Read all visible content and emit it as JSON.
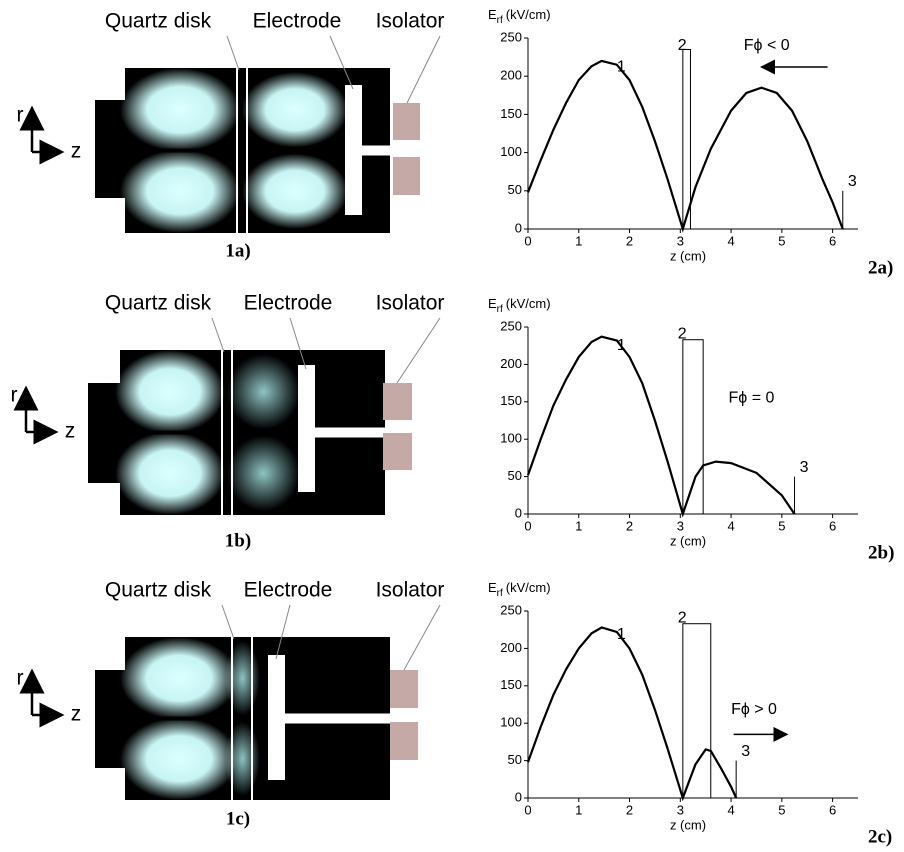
{
  "diagrams": [
    {
      "quartz": "Quartz disk",
      "electrode": "Electrode",
      "isolator": "Isolator",
      "r": "r",
      "z": "z",
      "label": "1a)"
    },
    {
      "quartz": "Quartz disk",
      "electrode": "Electrode",
      "isolator": "Isolator",
      "r": "r",
      "z": "z",
      "label": "1b)"
    },
    {
      "quartz": "Quartz disk",
      "electrode": "Electrode",
      "isolator": "Isolator",
      "r": "r",
      "z": "z",
      "label": "1c)"
    }
  ],
  "chart_data": [
    {
      "type": "line",
      "panel": "2a)",
      "ylabel": "E",
      "ylabel_sub": "rf",
      "ylabel_unit": "(kV/cm)",
      "xlabel": "z (cm)",
      "x": [
        0,
        0.25,
        0.5,
        0.75,
        1,
        1.25,
        1.45,
        1.75,
        2,
        2.25,
        2.5,
        2.75,
        3.05,
        3.3,
        3.6,
        4,
        4.3,
        4.6,
        4.9,
        5.2,
        5.5,
        5.8,
        6.0,
        6.2
      ],
      "values": [
        48,
        90,
        130,
        165,
        195,
        213,
        220,
        215,
        195,
        160,
        115,
        65,
        0,
        55,
        105,
        155,
        178,
        185,
        178,
        155,
        115,
        65,
        35,
        0
      ],
      "color": "#000000",
      "xlim": [
        0,
        6.5
      ],
      "ylim": [
        0,
        250
      ],
      "xticks": [
        0,
        1,
        2,
        3,
        4,
        5,
        6
      ],
      "yticks": [
        0,
        50,
        100,
        150,
        200,
        250
      ],
      "box": {
        "x0": 3.05,
        "x1": 3.2,
        "top": 235
      },
      "marker": {
        "x": 6.2,
        "y": 50
      },
      "arrow": {
        "x0": 5.9,
        "x1": 4.6,
        "y": 212
      },
      "annotations": [
        {
          "text": "1",
          "x": 1.75,
          "y": 212
        },
        {
          "text": "2",
          "x": 2.95,
          "y": 240
        },
        {
          "text": "3",
          "x": 6.3,
          "y": 62
        },
        {
          "text": "Fϕ < 0",
          "x": 4.25,
          "y": 240
        }
      ]
    },
    {
      "type": "line",
      "panel": "2b)",
      "ylabel": "E",
      "ylabel_sub": "rf",
      "ylabel_unit": "(kV/cm)",
      "xlabel": "z (cm)",
      "x": [
        0,
        0.25,
        0.5,
        0.75,
        1,
        1.25,
        1.45,
        1.75,
        2,
        2.25,
        2.5,
        2.75,
        3.05,
        3.3,
        3.45,
        3.7,
        4,
        4.5,
        5,
        5.25
      ],
      "values": [
        52,
        100,
        145,
        180,
        210,
        230,
        237,
        232,
        210,
        175,
        125,
        70,
        0,
        50,
        65,
        70,
        68,
        55,
        25,
        0
      ],
      "color": "#000000",
      "xlim": [
        0,
        6.5
      ],
      "ylim": [
        0,
        250
      ],
      "xticks": [
        0,
        1,
        2,
        3,
        4,
        5,
        6
      ],
      "yticks": [
        0,
        50,
        100,
        150,
        200,
        250
      ],
      "box": {
        "x0": 3.05,
        "x1": 3.45,
        "top": 233
      },
      "marker": {
        "x": 5.25,
        "y": 50
      },
      "arrow": null,
      "annotations": [
        {
          "text": "1",
          "x": 1.75,
          "y": 225
        },
        {
          "text": "2",
          "x": 2.95,
          "y": 240
        },
        {
          "text": "3",
          "x": 5.35,
          "y": 62
        },
        {
          "text": "Fϕ = 0",
          "x": 3.95,
          "y": 155
        }
      ]
    },
    {
      "type": "line",
      "panel": "2c)",
      "ylabel": "E",
      "ylabel_sub": "rf",
      "ylabel_unit": "(kV/cm)",
      "xlabel": "z (cm)",
      "x": [
        0,
        0.25,
        0.5,
        0.75,
        1,
        1.25,
        1.45,
        1.75,
        2,
        2.25,
        2.5,
        2.75,
        3.05,
        3.3,
        3.5,
        3.6,
        3.8,
        4.0,
        4.1
      ],
      "values": [
        48,
        95,
        138,
        172,
        200,
        220,
        228,
        222,
        200,
        165,
        118,
        66,
        0,
        45,
        65,
        63,
        40,
        15,
        0
      ],
      "color": "#000000",
      "xlim": [
        0,
        6.5
      ],
      "ylim": [
        0,
        250
      ],
      "xticks": [
        0,
        1,
        2,
        3,
        4,
        5,
        6
      ],
      "yticks": [
        0,
        50,
        100,
        150,
        200,
        250
      ],
      "box": {
        "x0": 3.05,
        "x1": 3.6,
        "top": 233
      },
      "marker": {
        "x": 4.1,
        "y": 50
      },
      "arrow": {
        "x0": 4.05,
        "x1": 5.1,
        "y": 85
      },
      "annotations": [
        {
          "text": "1",
          "x": 1.75,
          "y": 218
        },
        {
          "text": "2",
          "x": 2.95,
          "y": 240
        },
        {
          "text": "3",
          "x": 4.2,
          "y": 62
        },
        {
          "text": "Fϕ > 0",
          "x": 4.0,
          "y": 118
        }
      ]
    }
  ]
}
